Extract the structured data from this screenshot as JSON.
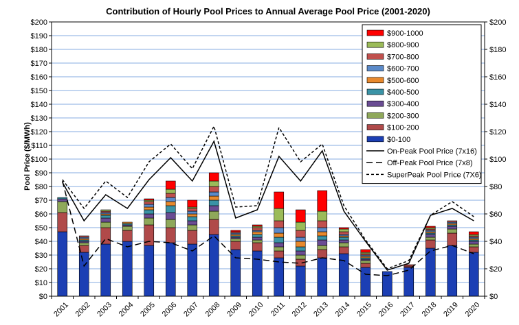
{
  "chart_data": {
    "type": "bar",
    "title": "Contribution of Hourly Pool Prices to Annual Average Pool Price (2001-2020)",
    "ylabel": "Pool Price ($/MWh)",
    "xlabel": "",
    "ylim": [
      0,
      200
    ],
    "y_ticks": [
      "$0",
      "$10",
      "$20",
      "$30",
      "$40",
      "$50",
      "$60",
      "$70",
      "$80",
      "$90",
      "$100",
      "$110",
      "$120",
      "$130",
      "$140",
      "$150",
      "$160",
      "$170",
      "$180",
      "$190",
      "$200"
    ],
    "y2_ticks": [
      "$0",
      "$20",
      "$40",
      "$60",
      "$80",
      "$100",
      "$120",
      "$140",
      "$160",
      "$180",
      "$200"
    ],
    "grid": true,
    "legend_position": "top-right",
    "categories": [
      "2001",
      "2002",
      "2003",
      "2004",
      "2005",
      "2006",
      "2007",
      "2008",
      "2009",
      "2010",
      "2011",
      "2012",
      "2013",
      "2014",
      "2015",
      "2016",
      "2017",
      "2018",
      "2019",
      "2020"
    ],
    "bar_series": [
      {
        "name": "$0-100",
        "color": "#1c3fb4",
        "values": [
          47,
          32,
          38,
          40,
          37,
          39,
          38,
          45,
          34,
          33,
          28,
          22,
          28,
          31,
          21,
          18,
          21,
          35,
          37,
          32
        ]
      },
      {
        "name": "$100-200",
        "color": "#b04a4a",
        "values": [
          14,
          5,
          12,
          8,
          15,
          11,
          10,
          11,
          6,
          6,
          5,
          5,
          6,
          5,
          3,
          0,
          1,
          6,
          9,
          4
        ]
      },
      {
        "name": "$200-300",
        "color": "#8fa85a",
        "values": [
          8,
          2,
          4,
          3,
          5,
          6,
          4,
          6,
          2,
          2,
          3,
          3,
          3,
          3,
          2,
          0,
          0,
          2,
          3,
          2
        ]
      },
      {
        "name": "$300-400",
        "color": "#6a4c93",
        "values": [
          2,
          1,
          3,
          1,
          3,
          5,
          3,
          4,
          1,
          2,
          3,
          3,
          4,
          2,
          1,
          0,
          0,
          2,
          2,
          2
        ]
      },
      {
        "name": "$400-500",
        "color": "#3a93a6",
        "values": [
          1,
          1,
          2,
          1,
          3,
          5,
          3,
          4,
          1,
          2,
          4,
          3,
          3,
          2,
          1,
          0,
          0,
          1,
          1,
          1
        ]
      },
      {
        "name": "$500-600",
        "color": "#e8892d",
        "values": [
          0,
          1,
          1,
          1,
          2,
          3,
          2,
          3,
          1,
          2,
          3,
          4,
          3,
          1,
          1,
          0,
          0,
          1,
          1,
          1
        ]
      },
      {
        "name": "$600-700",
        "color": "#5b8ac9",
        "values": [
          0,
          1,
          1,
          0,
          2,
          3,
          2,
          3,
          1,
          1,
          4,
          3,
          3,
          1,
          1,
          0,
          0,
          1,
          1,
          1
        ]
      },
      {
        "name": "$700-800",
        "color": "#c0504d",
        "values": [
          0,
          1,
          1,
          0,
          2,
          3,
          2,
          4,
          1,
          2,
          5,
          5,
          5,
          2,
          1,
          0,
          1,
          1,
          1,
          1
        ]
      },
      {
        "name": "$800-900",
        "color": "#9bbb59",
        "values": [
          0,
          0,
          1,
          0,
          1,
          3,
          1,
          4,
          0,
          1,
          9,
          6,
          7,
          2,
          1,
          0,
          0,
          1,
          0,
          1
        ]
      },
      {
        "name": "$900-1000",
        "color": "#ff0000",
        "values": [
          0,
          0,
          0,
          0,
          1,
          6,
          5,
          6,
          1,
          1,
          12,
          9,
          15,
          1,
          2,
          0,
          0,
          1,
          0,
          2
        ]
      }
    ],
    "line_series": [
      {
        "name": "On-Peak Pool Price (7x16)",
        "style": "solid",
        "values": [
          83,
          55,
          74,
          64,
          85,
          101,
          84,
          113,
          57,
          63,
          102,
          84,
          106,
          62,
          40,
          19,
          24,
          59,
          64,
          55
        ]
      },
      {
        "name": "Off-Peak Pool Price (7x8)",
        "style": "dash",
        "values": [
          84,
          22,
          42,
          36,
          40,
          39,
          33,
          44,
          28,
          27,
          25,
          24,
          28,
          26,
          16,
          15,
          19,
          33,
          37,
          31
        ]
      },
      {
        "name": "SuperPeak Pool Price (7X6)",
        "style": "dotted",
        "values": [
          85,
          64,
          84,
          72,
          98,
          111,
          93,
          124,
          65,
          66,
          123,
          98,
          111,
          66,
          41,
          20,
          26,
          59,
          69,
          58
        ]
      }
    ]
  }
}
